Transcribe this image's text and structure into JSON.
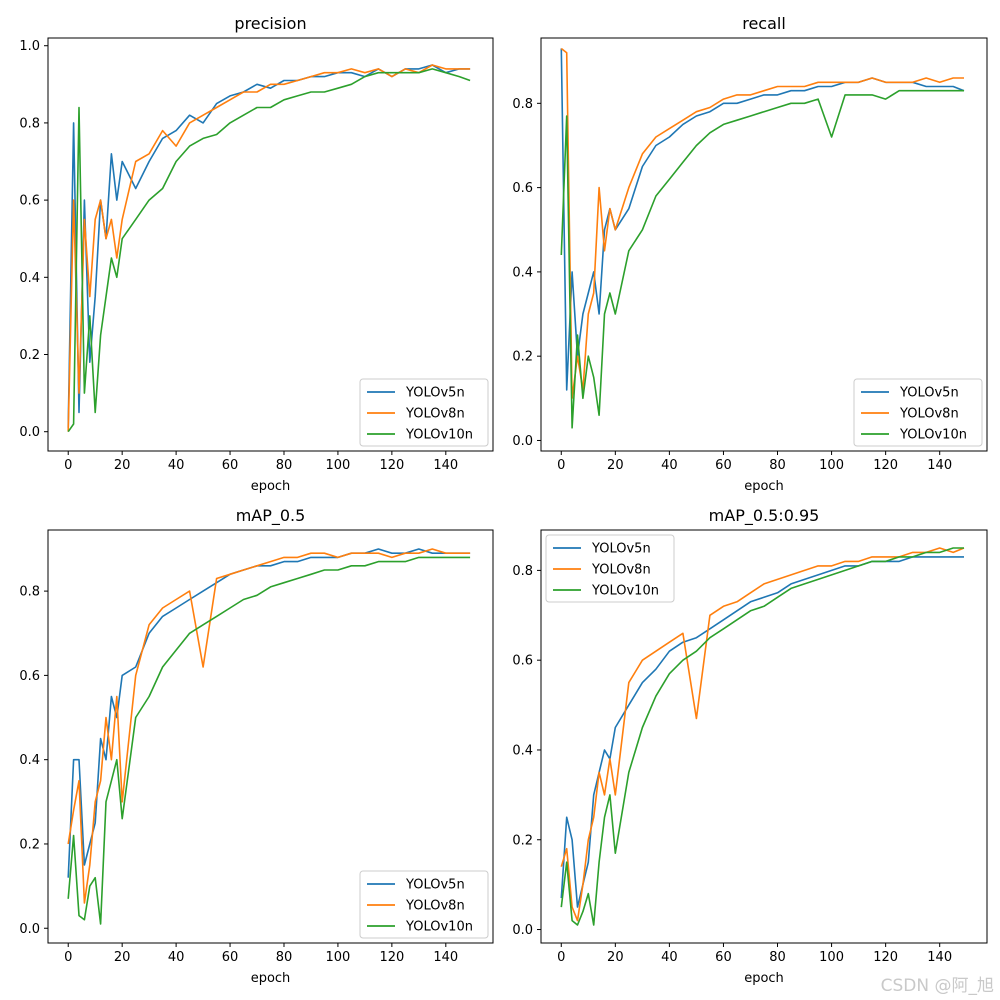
{
  "watermark": "CSDN @阿_旭",
  "chart_data": [
    {
      "type": "line",
      "title": "precision",
      "xlabel": "epoch",
      "ylabel": "",
      "xlim": [
        -7.5,
        157.5
      ],
      "ylim": [
        -0.05,
        1.02
      ],
      "xticks": [
        0,
        20,
        40,
        60,
        80,
        100,
        120,
        140
      ],
      "yticks": [
        0.0,
        0.2,
        0.4,
        0.6,
        0.8,
        1.0
      ],
      "ytick_labels": [
        "0.0",
        "0.2",
        "0.4",
        "0.6",
        "0.8",
        "1.0"
      ],
      "legend": "lower-right",
      "series": [
        {
          "name": "YOLOv5n",
          "color": "#1f77b4",
          "x": [
            0,
            2,
            4,
            6,
            8,
            10,
            12,
            14,
            16,
            18,
            20,
            25,
            30,
            35,
            40,
            45,
            50,
            55,
            60,
            65,
            70,
            75,
            80,
            85,
            90,
            95,
            100,
            105,
            110,
            115,
            120,
            125,
            130,
            135,
            140,
            145,
            149
          ],
          "y": [
            0.01,
            0.8,
            0.05,
            0.6,
            0.18,
            0.35,
            0.6,
            0.5,
            0.72,
            0.6,
            0.7,
            0.63,
            0.7,
            0.76,
            0.78,
            0.82,
            0.8,
            0.85,
            0.87,
            0.88,
            0.9,
            0.89,
            0.91,
            0.91,
            0.92,
            0.92,
            0.93,
            0.93,
            0.92,
            0.94,
            0.92,
            0.94,
            0.94,
            0.95,
            0.93,
            0.94,
            0.94
          ]
        },
        {
          "name": "YOLOv8n",
          "color": "#ff7f0e",
          "x": [
            0,
            2,
            4,
            6,
            8,
            10,
            12,
            14,
            16,
            18,
            20,
            25,
            30,
            35,
            40,
            45,
            50,
            55,
            60,
            65,
            70,
            75,
            80,
            85,
            90,
            95,
            100,
            105,
            110,
            115,
            120,
            125,
            130,
            135,
            140,
            145,
            149
          ],
          "y": [
            0.0,
            0.6,
            0.1,
            0.55,
            0.35,
            0.55,
            0.6,
            0.5,
            0.55,
            0.45,
            0.55,
            0.7,
            0.72,
            0.78,
            0.74,
            0.8,
            0.82,
            0.84,
            0.86,
            0.88,
            0.88,
            0.9,
            0.9,
            0.91,
            0.92,
            0.93,
            0.93,
            0.94,
            0.93,
            0.94,
            0.92,
            0.94,
            0.93,
            0.95,
            0.94,
            0.94,
            0.94
          ]
        },
        {
          "name": "YOLOv10n",
          "color": "#2ca02c",
          "x": [
            0,
            2,
            4,
            6,
            8,
            10,
            12,
            14,
            16,
            18,
            20,
            25,
            30,
            35,
            40,
            45,
            50,
            55,
            60,
            65,
            70,
            75,
            80,
            85,
            90,
            95,
            100,
            105,
            110,
            115,
            120,
            125,
            130,
            135,
            140,
            145,
            149
          ],
          "y": [
            0.0,
            0.02,
            0.84,
            0.1,
            0.3,
            0.05,
            0.25,
            0.35,
            0.45,
            0.4,
            0.5,
            0.55,
            0.6,
            0.63,
            0.7,
            0.74,
            0.76,
            0.77,
            0.8,
            0.82,
            0.84,
            0.84,
            0.86,
            0.87,
            0.88,
            0.88,
            0.89,
            0.9,
            0.92,
            0.93,
            0.93,
            0.93,
            0.93,
            0.94,
            0.93,
            0.92,
            0.91
          ]
        }
      ]
    },
    {
      "type": "line",
      "title": "recall",
      "xlabel": "epoch",
      "ylabel": "",
      "xlim": [
        -7.5,
        157.5
      ],
      "ylim": [
        -0.025,
        0.955
      ],
      "xticks": [
        0,
        20,
        40,
        60,
        80,
        100,
        120,
        140
      ],
      "yticks": [
        0.0,
        0.2,
        0.4,
        0.6,
        0.8
      ],
      "ytick_labels": [
        "0.0",
        "0.2",
        "0.4",
        "0.6",
        "0.8"
      ],
      "legend": "lower-right",
      "series": [
        {
          "name": "YOLOv5n",
          "color": "#1f77b4",
          "x": [
            0,
            2,
            4,
            6,
            8,
            10,
            12,
            14,
            16,
            18,
            20,
            25,
            30,
            35,
            40,
            45,
            50,
            55,
            60,
            65,
            70,
            75,
            80,
            85,
            90,
            95,
            100,
            105,
            110,
            115,
            120,
            125,
            130,
            135,
            140,
            145,
            149
          ],
          "y": [
            0.93,
            0.12,
            0.4,
            0.2,
            0.3,
            0.35,
            0.4,
            0.3,
            0.5,
            0.55,
            0.5,
            0.55,
            0.65,
            0.7,
            0.72,
            0.75,
            0.77,
            0.78,
            0.8,
            0.8,
            0.81,
            0.82,
            0.82,
            0.83,
            0.83,
            0.84,
            0.84,
            0.85,
            0.85,
            0.86,
            0.85,
            0.85,
            0.85,
            0.84,
            0.84,
            0.84,
            0.83
          ]
        },
        {
          "name": "YOLOv8n",
          "color": "#ff7f0e",
          "x": [
            0,
            2,
            4,
            6,
            8,
            10,
            12,
            14,
            16,
            18,
            20,
            25,
            30,
            35,
            40,
            45,
            50,
            55,
            60,
            65,
            70,
            75,
            80,
            85,
            90,
            95,
            100,
            105,
            110,
            115,
            120,
            125,
            130,
            135,
            140,
            145,
            149
          ],
          "y": [
            0.93,
            0.92,
            0.1,
            0.2,
            0.12,
            0.3,
            0.35,
            0.6,
            0.45,
            0.55,
            0.5,
            0.6,
            0.68,
            0.72,
            0.74,
            0.76,
            0.78,
            0.79,
            0.81,
            0.82,
            0.82,
            0.83,
            0.84,
            0.84,
            0.84,
            0.85,
            0.85,
            0.85,
            0.85,
            0.86,
            0.85,
            0.85,
            0.85,
            0.86,
            0.85,
            0.86,
            0.86
          ]
        },
        {
          "name": "YOLOv10n",
          "color": "#2ca02c",
          "x": [
            0,
            2,
            4,
            6,
            8,
            10,
            12,
            14,
            16,
            18,
            20,
            25,
            30,
            35,
            40,
            45,
            50,
            55,
            60,
            65,
            70,
            75,
            80,
            85,
            90,
            95,
            100,
            105,
            110,
            115,
            120,
            125,
            130,
            135,
            140,
            145,
            149
          ],
          "y": [
            0.44,
            0.77,
            0.03,
            0.25,
            0.1,
            0.2,
            0.15,
            0.06,
            0.3,
            0.35,
            0.3,
            0.45,
            0.5,
            0.58,
            0.62,
            0.66,
            0.7,
            0.73,
            0.75,
            0.76,
            0.77,
            0.78,
            0.79,
            0.8,
            0.8,
            0.81,
            0.72,
            0.82,
            0.82,
            0.82,
            0.81,
            0.83,
            0.83,
            0.83,
            0.83,
            0.83,
            0.83
          ]
        }
      ]
    },
    {
      "type": "line",
      "title": "mAP_0.5",
      "xlabel": "epoch",
      "ylabel": "",
      "xlim": [
        -7.5,
        157.5
      ],
      "ylim": [
        -0.035,
        0.945
      ],
      "xticks": [
        0,
        20,
        40,
        60,
        80,
        100,
        120,
        140
      ],
      "yticks": [
        0.0,
        0.2,
        0.4,
        0.6,
        0.8
      ],
      "ytick_labels": [
        "0.0",
        "0.2",
        "0.4",
        "0.6",
        "0.8"
      ],
      "legend": "lower-right",
      "series": [
        {
          "name": "YOLOv5n",
          "color": "#1f77b4",
          "x": [
            0,
            2,
            4,
            6,
            8,
            10,
            12,
            14,
            16,
            18,
            20,
            25,
            30,
            35,
            40,
            45,
            50,
            55,
            60,
            65,
            70,
            75,
            80,
            85,
            90,
            95,
            100,
            105,
            110,
            115,
            120,
            125,
            130,
            135,
            140,
            145,
            149
          ],
          "y": [
            0.12,
            0.4,
            0.4,
            0.15,
            0.2,
            0.25,
            0.45,
            0.4,
            0.55,
            0.5,
            0.6,
            0.62,
            0.7,
            0.74,
            0.76,
            0.78,
            0.8,
            0.82,
            0.84,
            0.85,
            0.86,
            0.86,
            0.87,
            0.87,
            0.88,
            0.88,
            0.88,
            0.89,
            0.89,
            0.9,
            0.89,
            0.89,
            0.9,
            0.89,
            0.89,
            0.89,
            0.89
          ]
        },
        {
          "name": "YOLOv8n",
          "color": "#ff7f0e",
          "x": [
            0,
            2,
            4,
            6,
            8,
            10,
            12,
            14,
            16,
            18,
            20,
            25,
            30,
            35,
            40,
            45,
            50,
            55,
            60,
            65,
            70,
            75,
            80,
            85,
            90,
            95,
            100,
            105,
            110,
            115,
            120,
            125,
            130,
            135,
            140,
            145,
            149
          ],
          "y": [
            0.2,
            0.28,
            0.35,
            0.06,
            0.15,
            0.3,
            0.35,
            0.5,
            0.4,
            0.55,
            0.3,
            0.6,
            0.72,
            0.76,
            0.78,
            0.8,
            0.62,
            0.83,
            0.84,
            0.85,
            0.86,
            0.87,
            0.88,
            0.88,
            0.89,
            0.89,
            0.88,
            0.89,
            0.89,
            0.89,
            0.88,
            0.89,
            0.89,
            0.9,
            0.89,
            0.89,
            0.89
          ]
        },
        {
          "name": "YOLOv10n",
          "color": "#2ca02c",
          "x": [
            0,
            2,
            4,
            6,
            8,
            10,
            12,
            14,
            16,
            18,
            20,
            25,
            30,
            35,
            40,
            45,
            50,
            55,
            60,
            65,
            70,
            75,
            80,
            85,
            90,
            95,
            100,
            105,
            110,
            115,
            120,
            125,
            130,
            135,
            140,
            145,
            149
          ],
          "y": [
            0.07,
            0.22,
            0.03,
            0.02,
            0.1,
            0.12,
            0.01,
            0.3,
            0.35,
            0.4,
            0.26,
            0.5,
            0.55,
            0.62,
            0.66,
            0.7,
            0.72,
            0.74,
            0.76,
            0.78,
            0.79,
            0.81,
            0.82,
            0.83,
            0.84,
            0.85,
            0.85,
            0.86,
            0.86,
            0.87,
            0.87,
            0.87,
            0.88,
            0.88,
            0.88,
            0.88,
            0.88
          ]
        }
      ]
    },
    {
      "type": "line",
      "title": "mAP_0.5:0.95",
      "xlabel": "epoch",
      "ylabel": "",
      "xlim": [
        -7.5,
        157.5
      ],
      "ylim": [
        -0.03,
        0.89
      ],
      "xticks": [
        0,
        20,
        40,
        60,
        80,
        100,
        120,
        140
      ],
      "yticks": [
        0.0,
        0.2,
        0.4,
        0.6,
        0.8
      ],
      "ytick_labels": [
        "0.0",
        "0.2",
        "0.4",
        "0.6",
        "0.8"
      ],
      "legend": "upper-left",
      "series": [
        {
          "name": "YOLOv5n",
          "color": "#1f77b4",
          "x": [
            0,
            2,
            4,
            6,
            8,
            10,
            12,
            14,
            16,
            18,
            20,
            25,
            30,
            35,
            40,
            45,
            50,
            55,
            60,
            65,
            70,
            75,
            80,
            85,
            90,
            95,
            100,
            105,
            110,
            115,
            120,
            125,
            130,
            135,
            140,
            145,
            149
          ],
          "y": [
            0.07,
            0.25,
            0.2,
            0.05,
            0.1,
            0.15,
            0.3,
            0.35,
            0.4,
            0.38,
            0.45,
            0.5,
            0.55,
            0.58,
            0.62,
            0.64,
            0.65,
            0.67,
            0.69,
            0.71,
            0.73,
            0.74,
            0.75,
            0.77,
            0.78,
            0.79,
            0.8,
            0.81,
            0.81,
            0.82,
            0.82,
            0.82,
            0.83,
            0.83,
            0.83,
            0.83,
            0.83
          ]
        },
        {
          "name": "YOLOv8n",
          "color": "#ff7f0e",
          "x": [
            0,
            2,
            4,
            6,
            8,
            10,
            12,
            14,
            16,
            18,
            20,
            25,
            30,
            35,
            40,
            45,
            50,
            55,
            60,
            65,
            70,
            75,
            80,
            85,
            90,
            95,
            100,
            105,
            110,
            115,
            120,
            125,
            130,
            135,
            140,
            145,
            149
          ],
          "y": [
            0.14,
            0.18,
            0.05,
            0.02,
            0.1,
            0.2,
            0.25,
            0.35,
            0.3,
            0.38,
            0.3,
            0.55,
            0.6,
            0.62,
            0.64,
            0.66,
            0.47,
            0.7,
            0.72,
            0.73,
            0.75,
            0.77,
            0.78,
            0.79,
            0.8,
            0.81,
            0.81,
            0.82,
            0.82,
            0.83,
            0.83,
            0.83,
            0.84,
            0.84,
            0.85,
            0.84,
            0.85
          ]
        },
        {
          "name": "YOLOv10n",
          "color": "#2ca02c",
          "x": [
            0,
            2,
            4,
            6,
            8,
            10,
            12,
            14,
            16,
            18,
            20,
            25,
            30,
            35,
            40,
            45,
            50,
            55,
            60,
            65,
            70,
            75,
            80,
            85,
            90,
            95,
            100,
            105,
            110,
            115,
            120,
            125,
            130,
            135,
            140,
            145,
            149
          ],
          "y": [
            0.05,
            0.15,
            0.02,
            0.01,
            0.04,
            0.08,
            0.01,
            0.15,
            0.25,
            0.3,
            0.17,
            0.35,
            0.45,
            0.52,
            0.57,
            0.6,
            0.62,
            0.65,
            0.67,
            0.69,
            0.71,
            0.72,
            0.74,
            0.76,
            0.77,
            0.78,
            0.79,
            0.8,
            0.81,
            0.82,
            0.82,
            0.83,
            0.83,
            0.84,
            0.84,
            0.85,
            0.85
          ]
        }
      ]
    }
  ]
}
